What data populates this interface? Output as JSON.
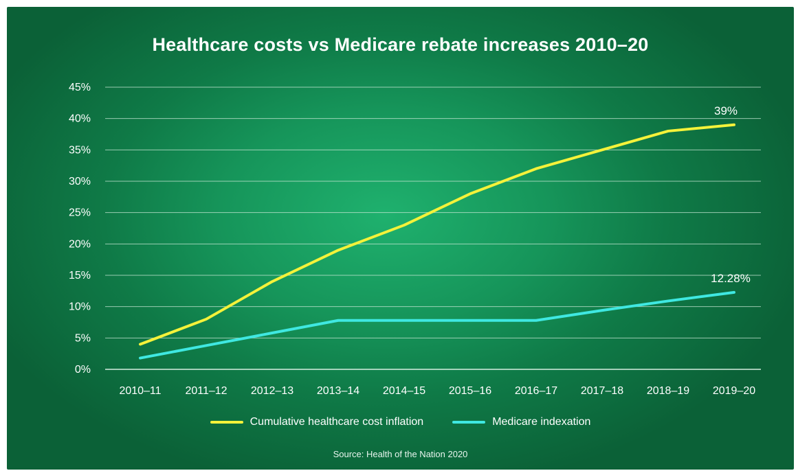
{
  "title": "Healthcare costs vs Medicare rebate increases 2010–20",
  "source": "Source: Health of the Nation 2020",
  "colors": {
    "background": "#16955a",
    "grid": "#c9e8d6",
    "series_yellow": "#f4f23a",
    "series_cyan": "#3fe8e1"
  },
  "chart_data": {
    "type": "line",
    "title": "Healthcare costs vs Medicare rebate increases 2010–20",
    "xlabel": "",
    "ylabel": "",
    "categories": [
      "2010–11",
      "2011–12",
      "2012–13",
      "2013–14",
      "2014–15",
      "2015–16",
      "2016–17",
      "2017–18",
      "2018–19",
      "2019–20"
    ],
    "ylim": [
      0,
      45
    ],
    "yticks": [
      "0%",
      "5%",
      "10%",
      "15%",
      "20%",
      "25%",
      "30%",
      "35%",
      "40%",
      "45%"
    ],
    "grid": true,
    "legend_position": "bottom-center",
    "series": [
      {
        "name": "Cumulative healthcare cost inflation",
        "color": "#f4f23a",
        "values": [
          4,
          8,
          14,
          19,
          23,
          28,
          32,
          35,
          38,
          39
        ],
        "end_label": "39%"
      },
      {
        "name": "Medicare indexation",
        "color": "#3fe8e1",
        "values": [
          1.8,
          3.8,
          5.8,
          7.8,
          7.8,
          7.8,
          7.8,
          9.4,
          10.9,
          12.28
        ],
        "end_label": "12.28%"
      }
    ]
  }
}
